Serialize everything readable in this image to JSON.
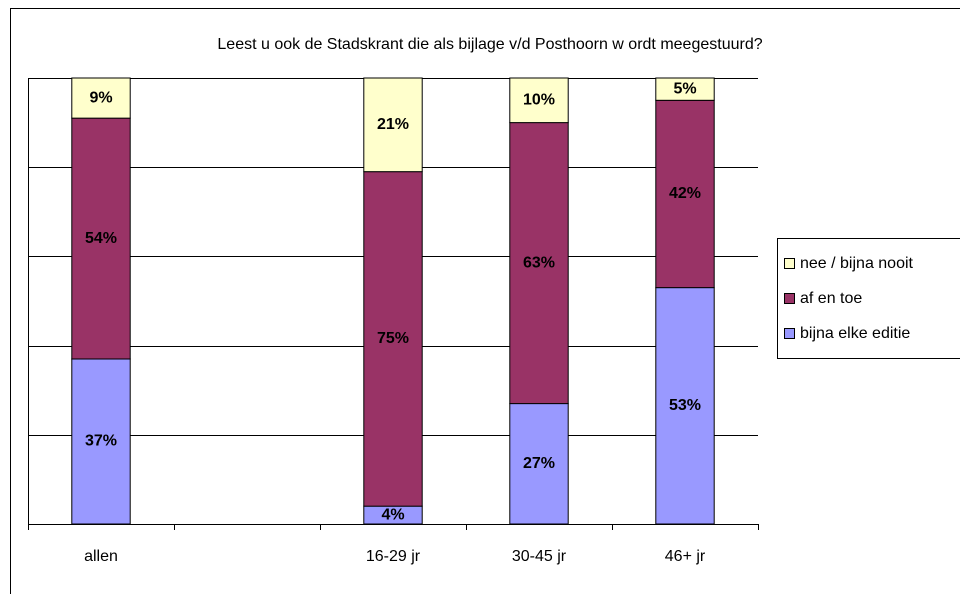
{
  "chart_data": {
    "type": "stacked_bar",
    "title": "Leest u ook de Stadskrant die als bijlage v/d Posthoorn w ordt meegestuurd?",
    "categories": [
      "allen",
      null,
      "16-29 jr",
      "30-45 jr",
      "46+ jr"
    ],
    "series": [
      {
        "name": "bijna elke editie",
        "color": "#9999ff",
        "values": [
          37,
          null,
          4,
          27,
          53
        ]
      },
      {
        "name": "af en toe",
        "color": "#993366",
        "values": [
          54,
          null,
          75,
          63,
          42
        ]
      },
      {
        "name": "nee / bijna nooit",
        "color": "#ffffcc",
        "values": [
          9,
          null,
          21,
          10,
          5
        ]
      }
    ],
    "value_labels": [
      [
        "37%",
        null,
        "4%",
        "27%",
        "53%"
      ],
      [
        "54%",
        null,
        "75%",
        "63%",
        "42%"
      ],
      [
        "9%",
        null,
        "21%",
        "10%",
        "5%"
      ]
    ],
    "ylim": [
      0,
      100
    ],
    "yticks": [
      0,
      20,
      40,
      60,
      80,
      100
    ],
    "grid": true,
    "legend": "right"
  }
}
